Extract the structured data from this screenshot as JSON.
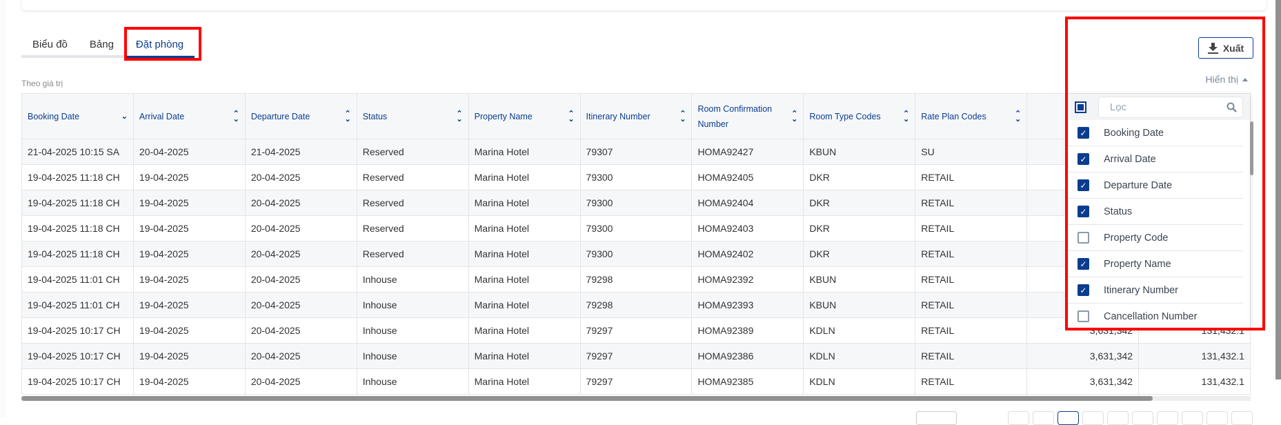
{
  "tabs": [
    {
      "label": "Biểu đồ"
    },
    {
      "label": "Bảng"
    },
    {
      "label": "Đặt phòng",
      "active": true
    }
  ],
  "subtitle": "Theo giá trị",
  "export_label": "Xuất",
  "show_label": "Hiển thị",
  "accent_color": "#0a3d8f",
  "highlight_color": "#ff0000",
  "table": {
    "columns": [
      "Booking Date",
      "Arrival Date",
      "Departure Date",
      "Status",
      "Property Name",
      "Itinerary Number",
      "Room Confirmation Number",
      "Room Type Codes",
      "Rate Plan Codes",
      "",
      ""
    ],
    "rows": [
      [
        "21-04-2025 10:15 SA",
        "20-04-2025",
        "21-04-2025",
        "Reserved",
        "Marina Hotel",
        "79307",
        "HOMA92427",
        "KBUN",
        "SU",
        "",
        ""
      ],
      [
        "19-04-2025 11:18 CH",
        "19-04-2025",
        "20-04-2025",
        "Reserved",
        "Marina Hotel",
        "79300",
        "HOMA92405",
        "DKR",
        "RETAIL",
        "",
        ""
      ],
      [
        "19-04-2025 11:18 CH",
        "19-04-2025",
        "20-04-2025",
        "Reserved",
        "Marina Hotel",
        "79300",
        "HOMA92404",
        "DKR",
        "RETAIL",
        "",
        ""
      ],
      [
        "19-04-2025 11:18 CH",
        "19-04-2025",
        "20-04-2025",
        "Reserved",
        "Marina Hotel",
        "79300",
        "HOMA92403",
        "DKR",
        "RETAIL",
        "",
        ""
      ],
      [
        "19-04-2025 11:18 CH",
        "19-04-2025",
        "20-04-2025",
        "Reserved",
        "Marina Hotel",
        "79300",
        "HOMA92402",
        "DKR",
        "RETAIL",
        "",
        ""
      ],
      [
        "19-04-2025 11:01 CH",
        "19-04-2025",
        "20-04-2025",
        "Inhouse",
        "Marina Hotel",
        "79298",
        "HOMA92392",
        "KBUN",
        "RETAIL",
        "",
        ""
      ],
      [
        "19-04-2025 11:01 CH",
        "19-04-2025",
        "20-04-2025",
        "Inhouse",
        "Marina Hotel",
        "79298",
        "HOMA92393",
        "KBUN",
        "RETAIL",
        "",
        ""
      ],
      [
        "19-04-2025 10:17 CH",
        "19-04-2025",
        "20-04-2025",
        "Inhouse",
        "Marina Hotel",
        "79297",
        "HOMA92389",
        "KDLN",
        "RETAIL",
        "3,631,342",
        "131,432.1"
      ],
      [
        "19-04-2025 10:17 CH",
        "19-04-2025",
        "20-04-2025",
        "Inhouse",
        "Marina Hotel",
        "79297",
        "HOMA92386",
        "KDLN",
        "RETAIL",
        "3,631,342",
        "131,432.1"
      ],
      [
        "19-04-2025 10:17 CH",
        "19-04-2025",
        "20-04-2025",
        "Inhouse",
        "Marina Hotel",
        "79297",
        "HOMA92385",
        "KDLN",
        "RETAIL",
        "3,631,342",
        "131,432.1"
      ]
    ]
  },
  "column_panel": {
    "filter_placeholder": "Lọc",
    "items": [
      {
        "label": "Booking Date",
        "checked": true
      },
      {
        "label": "Arrival Date",
        "checked": true
      },
      {
        "label": "Departure Date",
        "checked": true
      },
      {
        "label": "Status",
        "checked": true
      },
      {
        "label": "Property Code",
        "checked": false
      },
      {
        "label": "Property Name",
        "checked": true
      },
      {
        "label": "Itinerary Number",
        "checked": true
      },
      {
        "label": "Cancellation Number",
        "checked": false
      }
    ]
  },
  "pagination": {
    "current_page_index": 2,
    "page_buttons": 10
  }
}
